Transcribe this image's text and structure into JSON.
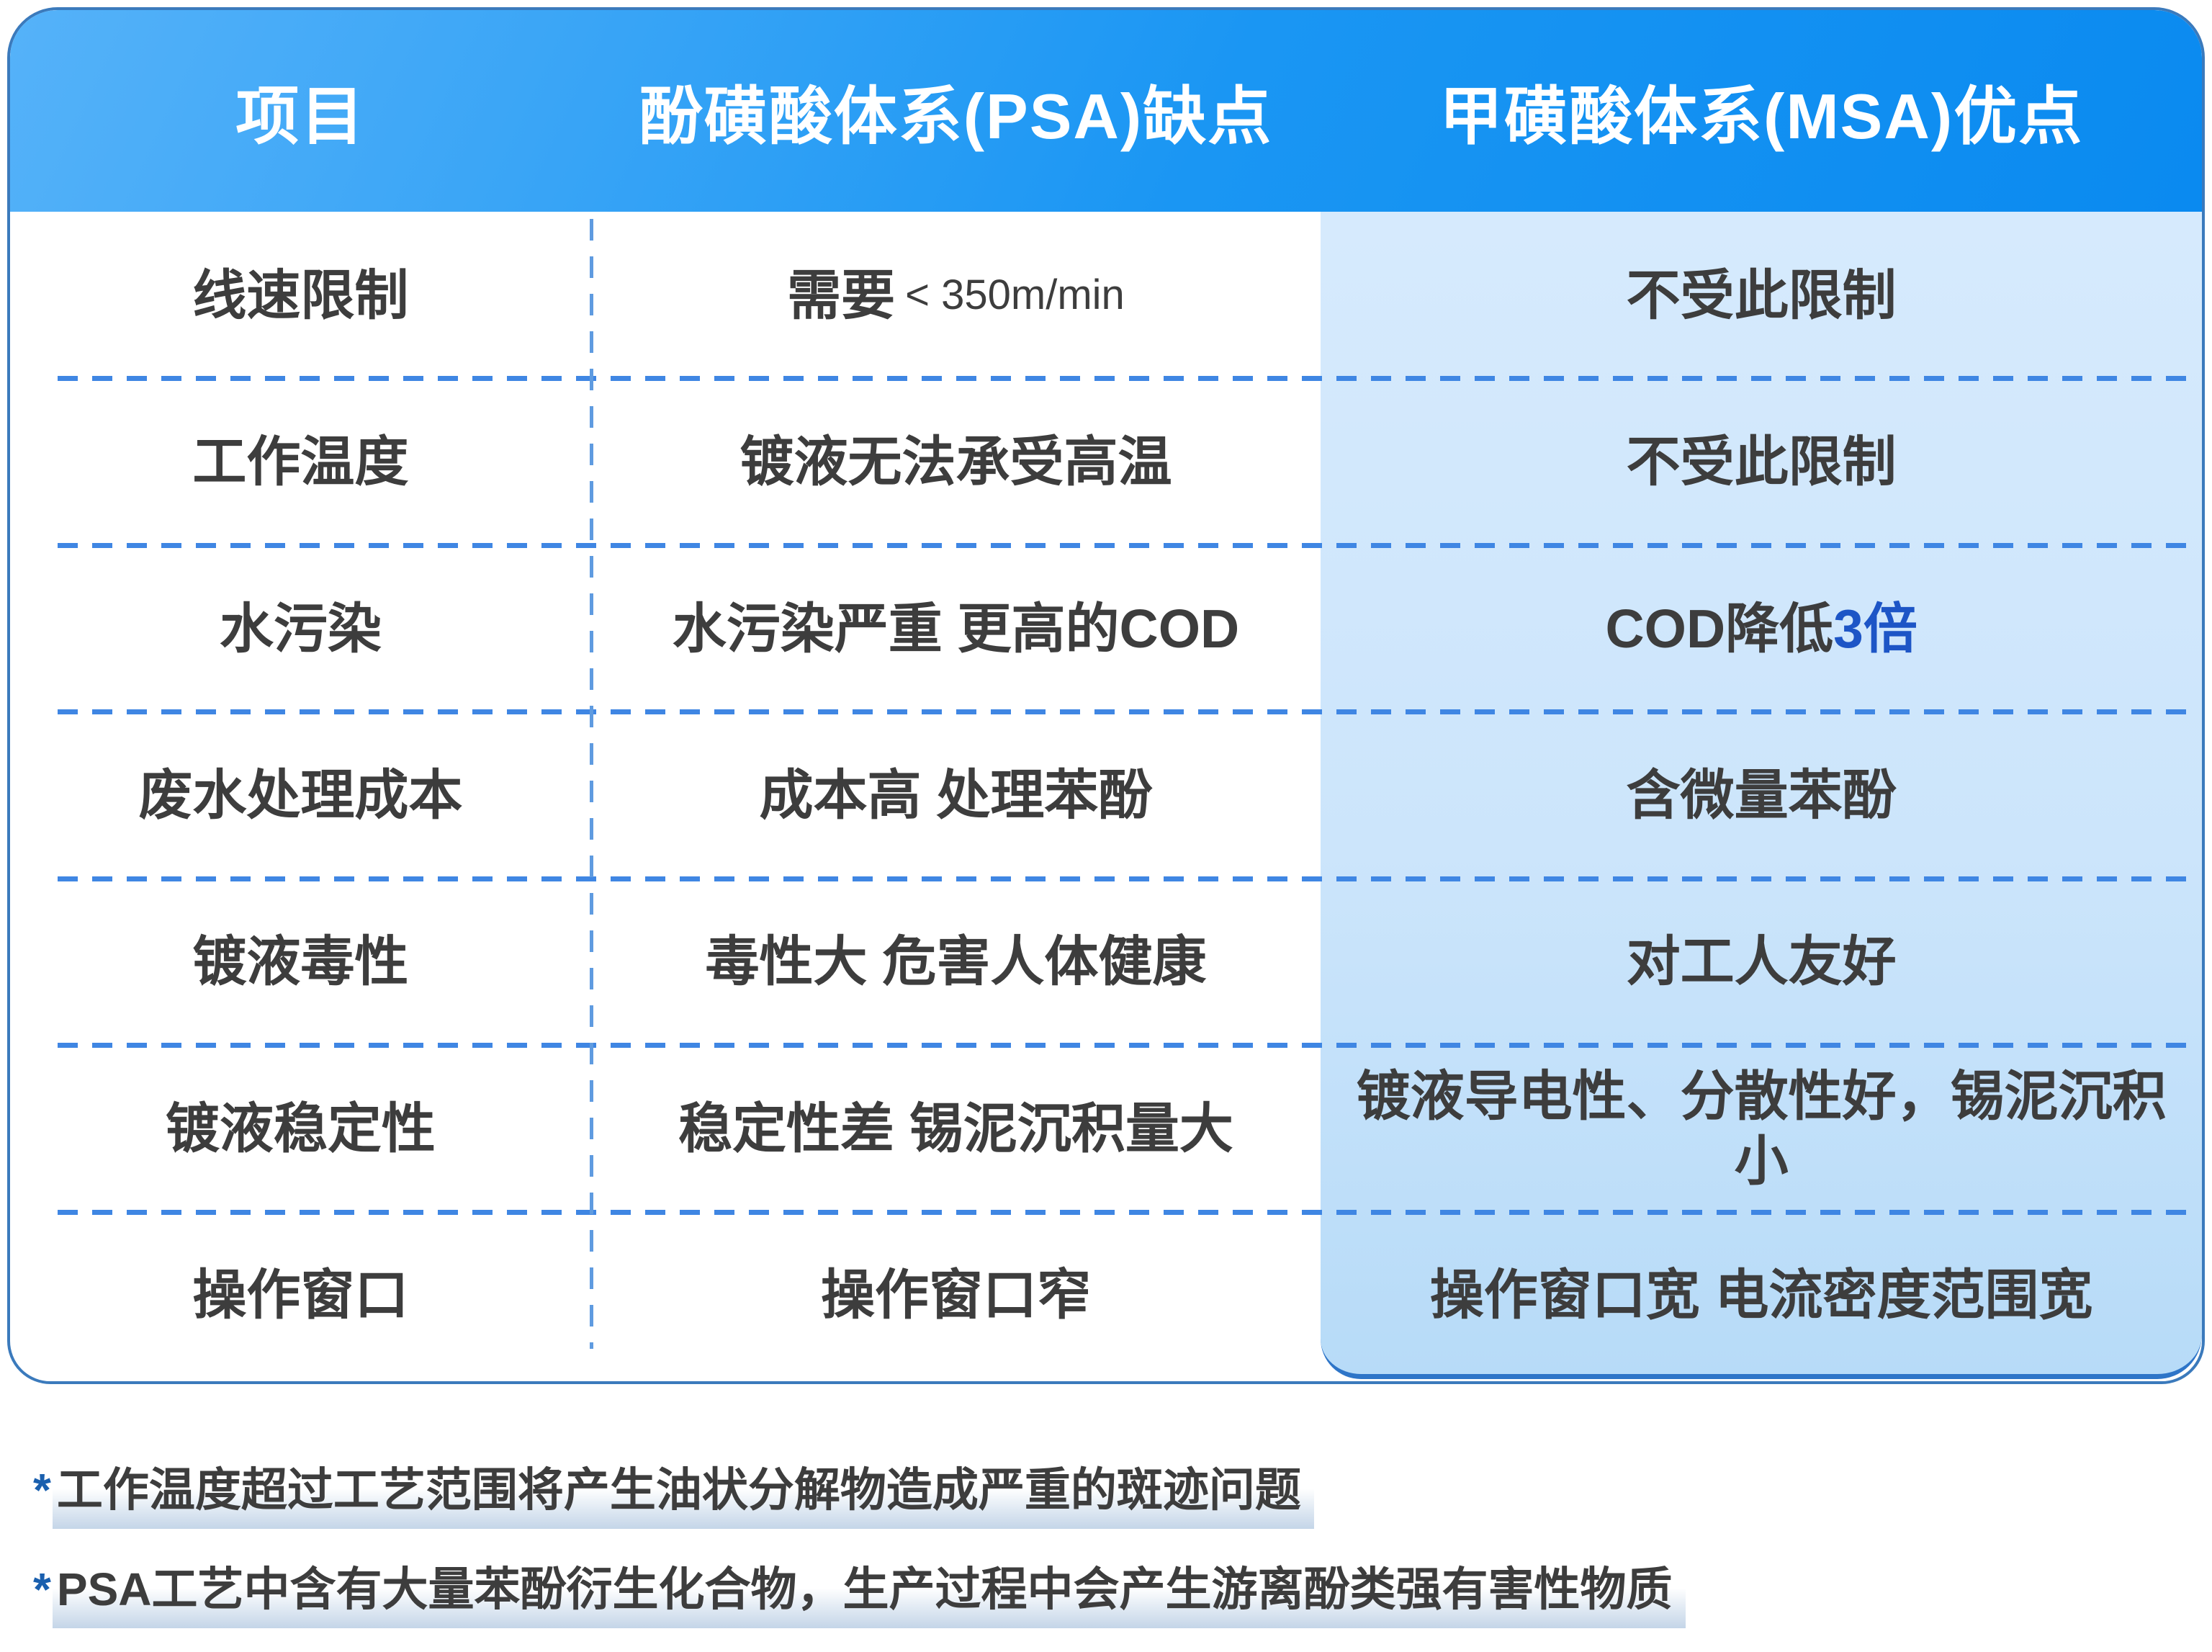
{
  "table": {
    "headers": [
      {
        "label": "项目"
      },
      {
        "label": "酚磺酸体系(PSA)缺点"
      },
      {
        "label": "甲磺酸体系(MSA)优点"
      }
    ],
    "rows": [
      {
        "item": "线速限制",
        "psa": "需要",
        "psa_note": "< 350m/min",
        "msa_pre": "不受此限制",
        "msa_accent": ""
      },
      {
        "item": "工作温度",
        "psa": "镀液无法承受高温",
        "psa_note": "",
        "msa_pre": "不受此限制",
        "msa_accent": ""
      },
      {
        "item": "水污染",
        "psa": "水污染严重 更高的COD",
        "psa_note": "",
        "msa_pre": "COD降低",
        "msa_accent": "3倍"
      },
      {
        "item": "废水处理成本",
        "psa": "成本高 处理苯酚",
        "psa_note": "",
        "msa_pre": "含微量苯酚",
        "msa_accent": ""
      },
      {
        "item": "镀液毒性",
        "psa": "毒性大 危害人体健康",
        "psa_note": "",
        "msa_pre": "对工人友好",
        "msa_accent": ""
      },
      {
        "item": "镀液稳定性",
        "psa": "稳定性差 锡泥沉积量大",
        "psa_note": "",
        "msa_pre": "镀液导电性、分散性好，锡泥沉积小",
        "msa_accent": ""
      },
      {
        "item": "操作窗口",
        "psa": "操作窗口窄",
        "psa_note": "",
        "msa_pre": "操作窗口宽 电流密度范围宽",
        "msa_accent": ""
      }
    ]
  },
  "footnotes": [
    {
      "marker": "*",
      "text": "工作温度超过工艺范围将产生油状分解物造成严重的斑迹问题"
    },
    {
      "marker": "*",
      "text": "PSA工艺中含有大量苯酚衍生化合物，生产过程中会产生游离酚类强有害性物质"
    }
  ],
  "colors": {
    "header_gradient_start": "#55b2f9",
    "header_gradient_end": "#0a8af0",
    "panel_top": "#d6eafd",
    "panel_bottom": "#b7dbf8",
    "table_border": "#3b7abc",
    "dash_blue": "#3f86e3",
    "body_text": "#3d3d3d",
    "accent_blue_text": "#1d55c6",
    "footnote_marker_blue": "#1a5fae",
    "footnote_band": "#c4d5e8"
  }
}
